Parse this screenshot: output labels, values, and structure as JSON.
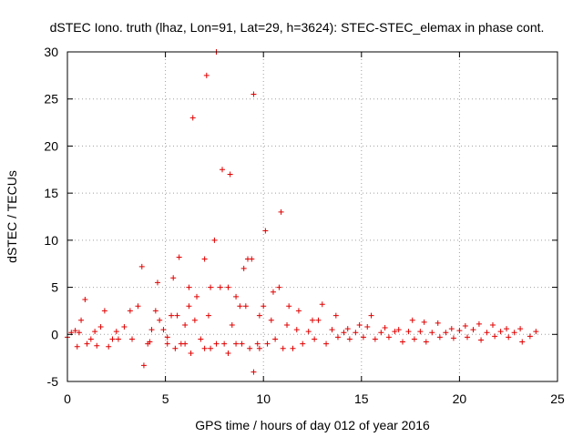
{
  "chart_data": {
    "type": "scatter",
    "title": "dSTEC Iono. truth (lhaz, Lon=91, Lat=29, h=3624): STEC-STEC_elemax in phase cont.",
    "xlabel": "GPS time / hours of day 012 of year 2016",
    "ylabel": "dSTEC  / TECUs",
    "xlim": [
      0,
      25
    ],
    "ylim": [
      -5,
      30
    ],
    "x_ticks": [
      "0",
      "5",
      "10",
      "15",
      "20",
      "25"
    ],
    "y_ticks": [
      "-5",
      "0",
      "5",
      "10",
      "15",
      "20",
      "25",
      "30"
    ],
    "grid": true,
    "marker": "+",
    "color": "#e00000",
    "arcs": [
      {
        "x": [
          0.0,
          0.2,
          0.4,
          0.6
        ],
        "y": [
          -0.3,
          0.2,
          0.4,
          0.2
        ]
      },
      {
        "x": [
          0.5,
          0.7,
          0.9
        ],
        "y": [
          -1.3,
          1.5,
          3.7
        ]
      },
      {
        "x": [
          1.0,
          1.2,
          1.4
        ],
        "y": [
          -1.0,
          -0.5,
          0.3
        ]
      },
      {
        "x": [
          1.5,
          1.7,
          1.9
        ],
        "y": [
          -1.2,
          0.8,
          2.5
        ]
      },
      {
        "x": [
          2.1,
          2.3,
          2.5
        ],
        "y": [
          -1.3,
          -0.5,
          0.3
        ]
      },
      {
        "x": [
          2.6,
          2.9,
          3.2
        ],
        "y": [
          -0.5,
          0.8,
          2.5
        ]
      },
      {
        "x": [
          3.3,
          3.6,
          3.8
        ],
        "y": [
          -0.5,
          3.0,
          7.2
        ]
      },
      {
        "x": [
          3.9,
          4.1,
          4.3
        ],
        "y": [
          -3.3,
          -1.0,
          0.5
        ]
      },
      {
        "x": [
          4.2,
          4.5,
          4.6
        ],
        "y": [
          -0.8,
          2.5,
          5.5
        ]
      },
      {
        "x": [
          4.7,
          4.9,
          5.1
        ],
        "y": [
          1.5,
          0.5,
          -0.3
        ]
      },
      {
        "x": [
          5.1,
          5.3,
          5.4
        ],
        "y": [
          -1.0,
          2.0,
          6.0
        ]
      },
      {
        "x": [
          5.5,
          5.6,
          5.7
        ],
        "y": [
          -1.5,
          2.0,
          8.2
        ]
      },
      {
        "x": [
          5.8,
          6.0,
          6.2
        ],
        "y": [
          -1.0,
          1.0,
          3.0
        ]
      },
      {
        "x": [
          6.0,
          6.2,
          6.4
        ],
        "y": [
          -1.0,
          5.0,
          23.0
        ]
      },
      {
        "x": [
          6.3,
          6.5,
          6.6
        ],
        "y": [
          -2.0,
          1.5,
          4.0
        ]
      },
      {
        "x": [
          6.8,
          7.0,
          7.1
        ],
        "y": [
          -0.5,
          8.0,
          27.5
        ]
      },
      {
        "x": [
          7.0,
          7.2,
          7.3
        ],
        "y": [
          -1.5,
          2.0,
          5.0
        ]
      },
      {
        "x": [
          7.3,
          7.5,
          7.6
        ],
        "y": [
          -1.5,
          10.0,
          30.0
        ]
      },
      {
        "x": [
          7.6,
          7.8,
          7.9
        ],
        "y": [
          -1.0,
          5.0,
          17.5
        ]
      },
      {
        "x": [
          8.0,
          8.2,
          8.3
        ],
        "y": [
          -1.0,
          5.0,
          17.0
        ]
      },
      {
        "x": [
          8.2,
          8.4,
          8.6
        ],
        "y": [
          -2.0,
          1.0,
          4.0
        ]
      },
      {
        "x": [
          8.6,
          8.8,
          9.0
        ],
        "y": [
          -1.0,
          3.0,
          7.0
        ]
      },
      {
        "x": [
          8.9,
          9.1,
          9.2
        ],
        "y": [
          -1.0,
          3.0,
          8.0
        ]
      },
      {
        "x": [
          9.3,
          9.4,
          9.5
        ],
        "y": [
          -1.5,
          8.0,
          25.5
        ]
      },
      {
        "x": [
          9.5,
          9.7,
          9.8
        ],
        "y": [
          -4.0,
          -1.0,
          2.0
        ]
      },
      {
        "x": [
          9.8,
          10.0,
          10.1
        ],
        "y": [
          -1.5,
          3.0,
          11.0
        ]
      },
      {
        "x": [
          10.2,
          10.4,
          10.5
        ],
        "y": [
          -1.0,
          1.5,
          4.5
        ]
      },
      {
        "x": [
          10.6,
          10.8,
          10.9
        ],
        "y": [
          -0.5,
          5.0,
          13.0
        ]
      },
      {
        "x": [
          11.0,
          11.2,
          11.3
        ],
        "y": [
          -1.5,
          1.0,
          3.0
        ]
      },
      {
        "x": [
          11.5,
          11.7,
          11.8
        ],
        "y": [
          -1.5,
          0.5,
          2.5
        ]
      },
      {
        "x": [
          12.0,
          12.3,
          12.5
        ],
        "y": [
          -1.0,
          0.3,
          1.5
        ]
      },
      {
        "x": [
          12.6,
          12.8,
          13.0
        ],
        "y": [
          -0.5,
          1.5,
          3.2
        ]
      },
      {
        "x": [
          13.2,
          13.5,
          13.7
        ],
        "y": [
          -1.0,
          0.5,
          2.0
        ]
      },
      {
        "x": [
          13.8,
          14.1,
          14.3
        ],
        "y": [
          -0.3,
          0.2,
          0.6
        ]
      },
      {
        "x": [
          14.4,
          14.7,
          14.9
        ],
        "y": [
          -0.5,
          0.2,
          1.0
        ]
      },
      {
        "x": [
          15.1,
          15.3,
          15.5
        ],
        "y": [
          -0.3,
          0.8,
          2.0
        ]
      },
      {
        "x": [
          15.7,
          16.0,
          16.2
        ],
        "y": [
          -0.5,
          0.2,
          0.7
        ]
      },
      {
        "x": [
          16.4,
          16.7,
          16.9
        ],
        "y": [
          -0.3,
          0.3,
          0.5
        ]
      },
      {
        "x": [
          17.1,
          17.4,
          17.6
        ],
        "y": [
          -0.8,
          0.3,
          1.5
        ]
      },
      {
        "x": [
          17.7,
          18.0,
          18.2
        ],
        "y": [
          -0.5,
          0.3,
          1.3
        ]
      },
      {
        "x": [
          18.3,
          18.6,
          18.9
        ],
        "y": [
          -0.8,
          0.2,
          1.2
        ]
      },
      {
        "x": [
          19.0,
          19.3,
          19.6
        ],
        "y": [
          -0.3,
          0.2,
          0.6
        ]
      },
      {
        "x": [
          19.7,
          20.0,
          20.3
        ],
        "y": [
          -0.4,
          0.4,
          0.9
        ]
      },
      {
        "x": [
          20.4,
          20.7,
          21.0
        ],
        "y": [
          -0.3,
          0.5,
          1.1
        ]
      },
      {
        "x": [
          21.1,
          21.4,
          21.7
        ],
        "y": [
          -0.6,
          0.2,
          1.0
        ]
      },
      {
        "x": [
          21.8,
          22.1,
          22.4
        ],
        "y": [
          -0.2,
          0.3,
          0.6
        ]
      },
      {
        "x": [
          22.5,
          22.8,
          23.1
        ],
        "y": [
          -0.3,
          0.2,
          0.6
        ]
      },
      {
        "x": [
          23.2,
          23.6,
          23.9
        ],
        "y": [
          -0.8,
          -0.2,
          0.3
        ]
      }
    ]
  }
}
